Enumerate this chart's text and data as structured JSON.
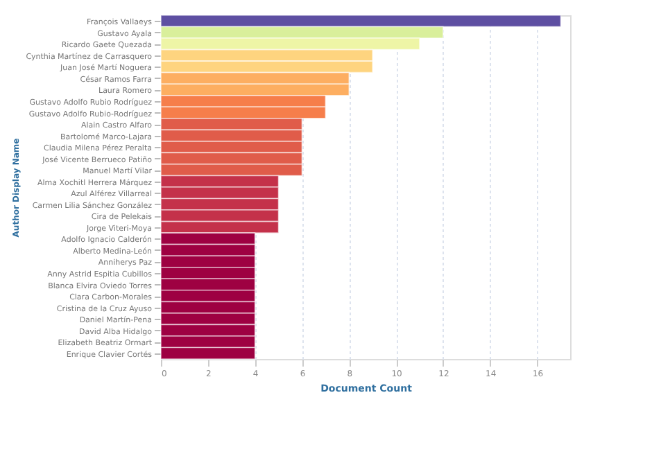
{
  "chart_data": {
    "type": "bar",
    "orientation": "horizontal",
    "xlabel": "Document Count",
    "ylabel": "Author Display Name",
    "categories": [
      "François Vallaeys",
      "Gustavo Ayala",
      "Ricardo Gaete Quezada",
      "Cynthia Martínez de Carrasquero",
      "Juan José Martí Noguera",
      "César Ramos Farra",
      "Laura Romero",
      "Gustavo Adolfo Rubio Rodríguez",
      "Gustavo Adolfo Rubio-Rodríguez",
      "Alain Castro Alfaro",
      "Bartolomé Marco-Lajara",
      "Claudia Milena Pérez Peralta",
      "José Vicente Berrueco Patiño",
      "Manuel Martí Vilar",
      "Alma Xochitl Herrera Márquez",
      "Azul Alférez Villarreal",
      "Carmen Lilia Sánchez González",
      "Cira de Pelekais",
      "Jorge Viteri-Moya",
      "Adolfo Ignacio Calderón",
      "Alberto Medina-León",
      "Anniherys Paz",
      "Anny Astrid Espitia Cubillos",
      "Blanca Elvira Oviedo Torres",
      "Clara Carbon-Morales",
      "Cristina de la Cruz Ayuso",
      "Daniel Martín-Pena",
      "David Alba Hidalgo",
      "Elizabeth Beatriz Ormart",
      "Enrique Clavier Cortés"
    ],
    "values": [
      17,
      12,
      11,
      9,
      9,
      8,
      8,
      7,
      7,
      6,
      6,
      6,
      6,
      6,
      5,
      5,
      5,
      5,
      5,
      4,
      4,
      4,
      4,
      4,
      4,
      4,
      4,
      4,
      4,
      4
    ],
    "colors": [
      "#5e4fa2",
      "#d9ef9b",
      "#eef5a6",
      "#fed47f",
      "#fed47f",
      "#fdae61",
      "#fdae61",
      "#f67e4b",
      "#f67e4b",
      "#e05c4a",
      "#e05c4a",
      "#e05c4a",
      "#e05c4a",
      "#e05c4a",
      "#c4314a",
      "#c4314a",
      "#c4314a",
      "#c4314a",
      "#c4314a",
      "#9e0142",
      "#9e0142",
      "#9e0142",
      "#9e0142",
      "#9e0142",
      "#9e0142",
      "#9e0142",
      "#9e0142",
      "#9e0142",
      "#9e0142",
      "#9e0142"
    ],
    "xlim": [
      0,
      17.4
    ],
    "xticks": [
      0,
      2,
      4,
      6,
      8,
      10,
      12,
      14,
      16
    ],
    "grid": "x"
  }
}
